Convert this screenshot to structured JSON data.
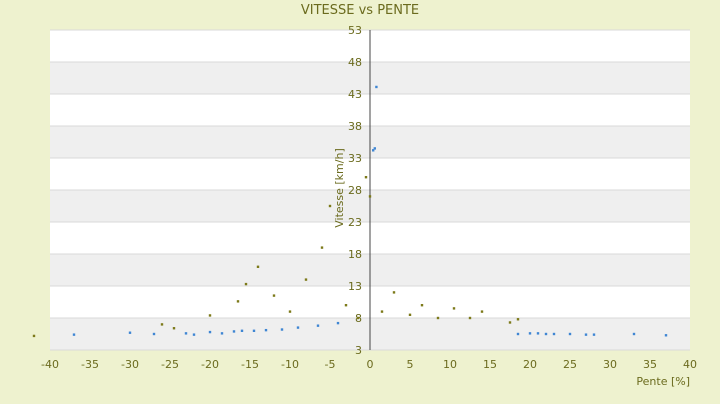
{
  "chart_data": {
    "type": "scatter",
    "title": "VITESSE vs PENTE",
    "xlabel": "Pente [%]",
    "ylabel": "Vitesse [km/h]",
    "xlim": [
      -40,
      40
    ],
    "ylim": [
      3,
      53
    ],
    "x_ticks": [
      -40,
      -35,
      -30,
      -25,
      -20,
      -15,
      -10,
      -5,
      0,
      5,
      10,
      15,
      20,
      25,
      30,
      35,
      40
    ],
    "y_ticks": [
      3,
      8,
      13,
      18,
      23,
      28,
      33,
      38,
      43,
      48,
      53
    ],
    "grid": true,
    "legend": "none",
    "colors": {
      "background": "#eef2cf",
      "plot_band_light": "#ffffff",
      "plot_band_dark": "#efefef",
      "text": "#6b6b1e",
      "series_blue": "#3f86d3",
      "series_olive": "#7d7a1a"
    },
    "series": [
      {
        "color": "#3f86d3",
        "values": [
          [
            -37.0,
            5.4
          ],
          [
            -30.0,
            5.7
          ],
          [
            -27.0,
            5.5
          ],
          [
            -23.0,
            5.6
          ],
          [
            -22.0,
            5.4
          ],
          [
            -20.0,
            5.8
          ],
          [
            -18.5,
            5.6
          ],
          [
            -17.0,
            5.9
          ],
          [
            -16.0,
            6.0
          ],
          [
            -14.5,
            6.0
          ],
          [
            -13.0,
            6.1
          ],
          [
            -11.0,
            6.2
          ],
          [
            -9.0,
            6.5
          ],
          [
            -6.5,
            6.8
          ],
          [
            -4.0,
            7.2
          ],
          [
            18.5,
            5.5
          ],
          [
            20.0,
            5.6
          ],
          [
            21.0,
            5.6
          ],
          [
            22.0,
            5.5
          ],
          [
            23.0,
            5.5
          ],
          [
            25.0,
            5.5
          ],
          [
            27.0,
            5.4
          ],
          [
            28.0,
            5.4
          ],
          [
            33.0,
            5.5
          ],
          [
            37.0,
            5.3
          ],
          [
            0.8,
            44.1
          ],
          [
            0.6,
            34.5
          ],
          [
            0.4,
            34.2
          ]
        ]
      },
      {
        "color": "#7d7a1a",
        "values": [
          [
            -42.0,
            5.2
          ],
          [
            -26.0,
            7.0
          ],
          [
            -24.5,
            6.4
          ],
          [
            -20.0,
            8.4
          ],
          [
            -16.5,
            10.6
          ],
          [
            -15.5,
            13.3
          ],
          [
            -14.0,
            16.0
          ],
          [
            -12.0,
            11.5
          ],
          [
            -10.0,
            9.0
          ],
          [
            -8.0,
            14.0
          ],
          [
            -6.0,
            19.0
          ],
          [
            -5.0,
            25.5
          ],
          [
            -3.0,
            10.0
          ],
          [
            -1.5,
            8.0
          ],
          [
            -0.5,
            30.0
          ],
          [
            0.0,
            27.0
          ],
          [
            1.5,
            9.0
          ],
          [
            3.0,
            12.0
          ],
          [
            5.0,
            8.5
          ],
          [
            6.5,
            10.0
          ],
          [
            8.5,
            8.0
          ],
          [
            10.5,
            9.5
          ],
          [
            12.5,
            8.0
          ],
          [
            14.0,
            9.0
          ],
          [
            17.5,
            7.3
          ],
          [
            18.5,
            7.8
          ]
        ]
      }
    ]
  }
}
